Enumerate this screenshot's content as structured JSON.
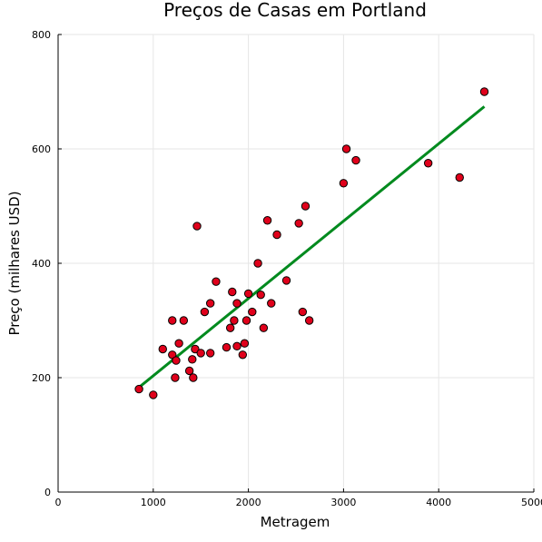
{
  "chart_data": {
    "type": "scatter",
    "title": "Preços de Casas em Portland",
    "xlabel": "Metragem",
    "ylabel": "Preço (milhares USD)",
    "xlim": [
      0,
      5000
    ],
    "ylim": [
      0,
      800
    ],
    "xticks": [
      0,
      1000,
      2000,
      3000,
      4000,
      5000
    ],
    "yticks": [
      0,
      200,
      400,
      600,
      800
    ],
    "xtick_labels": [
      "0",
      "1000",
      "2000",
      "3000",
      "4000",
      "5000"
    ],
    "ytick_labels": [
      "0",
      "200",
      "400",
      "600",
      "800"
    ],
    "grid": true,
    "legend": false,
    "points_color": "#e0001b",
    "points_edge_color": "#000000",
    "line_color": "#008a1e",
    "points": [
      [
        850,
        180
      ],
      [
        1000,
        170
      ],
      [
        1100,
        250
      ],
      [
        1200,
        300
      ],
      [
        1200,
        240
      ],
      [
        1230,
        200
      ],
      [
        1240,
        230
      ],
      [
        1270,
        260
      ],
      [
        1320,
        300
      ],
      [
        1380,
        212
      ],
      [
        1410,
        232
      ],
      [
        1420,
        200
      ],
      [
        1440,
        250
      ],
      [
        1460,
        465
      ],
      [
        1500,
        243
      ],
      [
        1540,
        315
      ],
      [
        1600,
        330
      ],
      [
        1600,
        243
      ],
      [
        1660,
        368
      ],
      [
        1770,
        253
      ],
      [
        1810,
        287
      ],
      [
        1830,
        350
      ],
      [
        1850,
        300
      ],
      [
        1880,
        330
      ],
      [
        1880,
        255
      ],
      [
        1940,
        240
      ],
      [
        1960,
        260
      ],
      [
        1980,
        300
      ],
      [
        2000,
        347
      ],
      [
        2040,
        315
      ],
      [
        2100,
        400
      ],
      [
        2130,
        345
      ],
      [
        2160,
        287
      ],
      [
        2200,
        475
      ],
      [
        2240,
        330
      ],
      [
        2300,
        450
      ],
      [
        2400,
        370
      ],
      [
        2530,
        470
      ],
      [
        2570,
        315
      ],
      [
        2600,
        500
      ],
      [
        2640,
        300
      ],
      [
        3000,
        540
      ],
      [
        3030,
        600
      ],
      [
        3130,
        580
      ],
      [
        3890,
        575
      ],
      [
        4220,
        550
      ],
      [
        4480,
        700
      ]
    ],
    "fit_line": {
      "x": [
        850,
        4480
      ],
      "y": [
        183,
        674
      ]
    }
  }
}
